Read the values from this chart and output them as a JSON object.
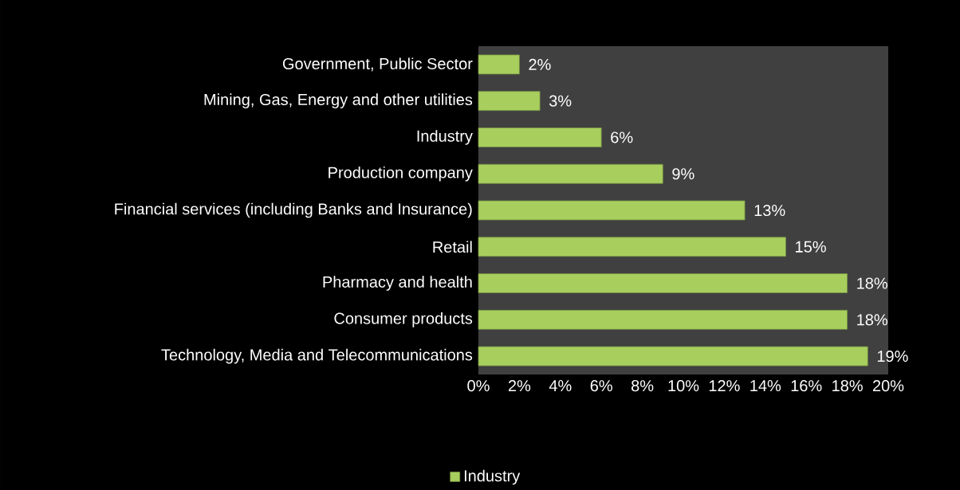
{
  "chart_data": {
    "type": "bar",
    "orientation": "horizontal",
    "categories": [
      "Government, Public Sector",
      "Mining, Gas, Energy and other utilities",
      "Industry",
      "Production company",
      "Financial services (including Banks and Insurance)",
      "Retail",
      "Pharmacy and health",
      "Consumer products",
      "Technology, Media and Telecommunications"
    ],
    "series": [
      {
        "name": "Industry",
        "color": "#a8cf5e",
        "values": [
          2,
          3,
          6,
          9,
          13,
          15,
          18,
          18,
          19
        ],
        "value_labels": [
          "2%",
          "3%",
          "6%",
          "9%",
          "13%",
          "15%",
          "18%",
          "18%",
          "19%"
        ]
      }
    ],
    "xlim": [
      0,
      20
    ],
    "xticks": [
      {
        "value": 0,
        "label": "0%"
      },
      {
        "value": 2,
        "label": "2%"
      },
      {
        "value": 4,
        "label": "4%"
      },
      {
        "value": 6,
        "label": "6%"
      },
      {
        "value": 8,
        "label": "8%"
      },
      {
        "value": 10,
        "label": "10%"
      },
      {
        "value": 12,
        "label": "12%"
      },
      {
        "value": 14,
        "label": "14%"
      },
      {
        "value": 16,
        "label": "16%"
      },
      {
        "value": 18,
        "label": "18%"
      },
      {
        "value": 20,
        "label": "20%"
      }
    ],
    "legend": "bottom"
  }
}
